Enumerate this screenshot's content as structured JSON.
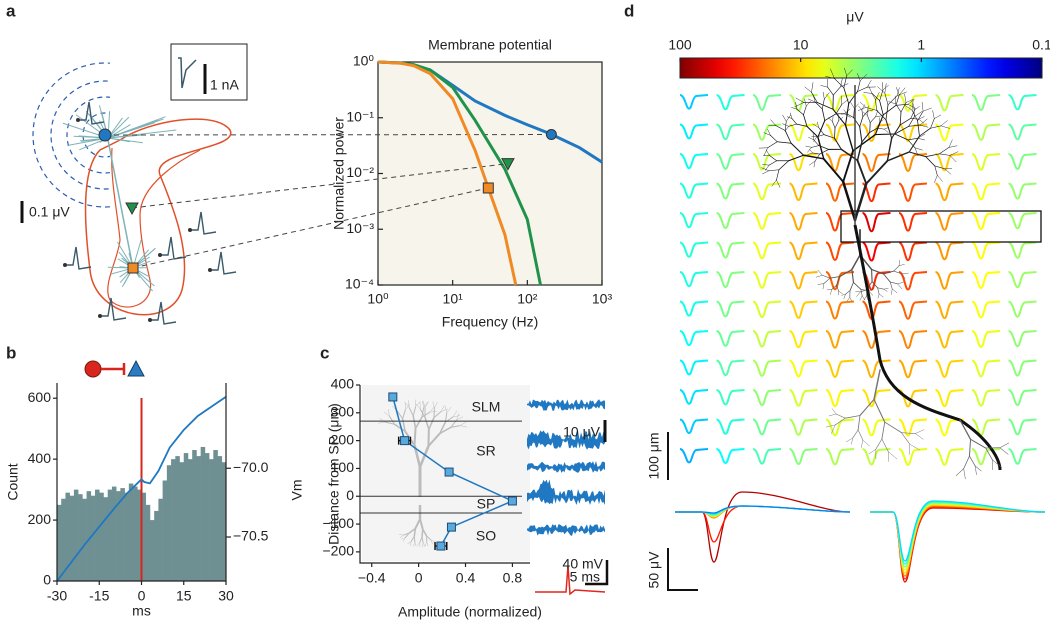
{
  "panel_labels": [
    "a",
    "b",
    "c",
    "d"
  ],
  "chart_data": [
    {
      "type": "line",
      "title": "Membrane potential",
      "x_label": "Frequency (Hz)",
      "y_label": "Normalized power",
      "log_x": true,
      "log_y": true,
      "xlim": [
        1,
        1000
      ],
      "ylim": [
        0.0001,
        1
      ],
      "xticks": [
        {
          "value": 1,
          "label": "10⁰"
        },
        {
          "value": 10,
          "label": "10¹"
        },
        {
          "value": 100,
          "label": "10²"
        },
        {
          "value": 1000,
          "label": "10³"
        }
      ],
      "yticks": [
        {
          "value": 0.0001,
          "label": "10⁻⁴"
        },
        {
          "value": 0.001,
          "label": "10⁻³"
        },
        {
          "value": 0.01,
          "label": "10⁻²"
        },
        {
          "value": 0.1,
          "label": "10⁻¹"
        },
        {
          "value": 1,
          "label": "10⁰"
        }
      ],
      "series": [
        {
          "color": "#1f78c1",
          "x": [
            1,
            2,
            3,
            5,
            10,
            20,
            50,
            100,
            200,
            500,
            1000
          ],
          "values": [
            1,
            0.96,
            0.88,
            0.72,
            0.38,
            0.2,
            0.11,
            0.075,
            0.052,
            0.029,
            0.016
          ],
          "marker": {
            "shape": "circle",
            "x": 210,
            "y": 0.05
          }
        },
        {
          "color": "#21924a",
          "x": [
            1,
            2,
            3,
            5,
            10,
            20,
            50,
            100,
            150
          ],
          "values": [
            1,
            0.96,
            0.9,
            0.72,
            0.35,
            0.09,
            0.012,
            0.0015,
            0.0001
          ],
          "marker": {
            "shape": "triangle",
            "x": 55,
            "y": 0.015
          }
        },
        {
          "color": "#f08a24",
          "x": [
            1,
            2,
            3,
            5,
            10,
            20,
            30,
            50,
            70
          ],
          "values": [
            1,
            0.95,
            0.86,
            0.62,
            0.22,
            0.026,
            0.0055,
            0.0008,
            0.0001
          ],
          "marker": {
            "shape": "square",
            "x": 30,
            "y": 0.0055
          }
        }
      ],
      "annotations": [
        "1 nA",
        "0.1 μV"
      ]
    },
    {
      "type": "histogram",
      "x_label": "ms",
      "y_label": "Count",
      "y2_label": "Vm",
      "color": "#6e9093",
      "xlim": [
        -30,
        30
      ],
      "xticks": [
        -30,
        -15,
        0,
        15,
        30
      ],
      "ylim": [
        0,
        650
      ],
      "yticks": [
        0,
        200,
        400,
        600
      ],
      "y2lim": [
        -70.82,
        -69.38
      ],
      "y2ticks": [
        {
          "value": -70,
          "label": "−70.0"
        },
        {
          "value": -70.5,
          "label": "−70.5"
        }
      ],
      "bins": [
        -30,
        -28.5,
        -27,
        -25.5,
        -24,
        -22.5,
        -21,
        -19.5,
        -18,
        -16.5,
        -15,
        -13.5,
        -12,
        -10.5,
        -9,
        -7.5,
        -6,
        -4.5,
        -3,
        -1.5,
        0,
        1.5,
        3,
        4.5,
        6,
        7.5,
        9,
        10.5,
        12,
        13.5,
        15,
        16.5,
        18,
        19.5,
        21,
        22.5,
        24,
        25.5,
        27,
        28.5,
        30
      ],
      "values": [
        250,
        270,
        290,
        280,
        300,
        285,
        270,
        295,
        280,
        300,
        290,
        275,
        300,
        310,
        295,
        305,
        290,
        320,
        310,
        300,
        290,
        250,
        200,
        230,
        270,
        330,
        380,
        400,
        410,
        390,
        420,
        400,
        430,
        410,
        440,
        420,
        400,
        430,
        410,
        390
      ],
      "vline": 0,
      "vline_color": "#d8261e",
      "series": [
        {
          "axis": "y2",
          "color": "#1f78c1",
          "x": [
            -30,
            -20,
            -10,
            -5,
            0,
            1,
            3,
            6,
            10,
            15,
            20,
            25,
            30
          ],
          "values": [
            -70.82,
            -70.55,
            -70.3,
            -70.18,
            -70.08,
            -70.1,
            -70.11,
            -70.02,
            -69.85,
            -69.72,
            -69.62,
            -69.55,
            -69.48
          ]
        }
      ]
    },
    {
      "type": "scatter",
      "x_label": "Amplitude (normalized)",
      "y_label": "Distance from SP (μm)",
      "color": "#1f78c1",
      "xlim": [
        -0.5,
        0.95
      ],
      "xticks": [
        {
          "value": -0.4,
          "label": "−0.4"
        },
        0,
        0.4,
        0.8
      ],
      "ylim": [
        -240,
        400
      ],
      "yticks": [
        {
          "value": -200,
          "label": "−200"
        },
        {
          "value": -100,
          "label": "−100"
        },
        0,
        100,
        200,
        300,
        400
      ],
      "x": [
        -0.22,
        -0.12,
        0.26,
        0.8,
        0.28,
        0.19
      ],
      "values": [
        357,
        200,
        87,
        -17,
        -111,
        -179
      ],
      "x_errors": [
        null,
        0.05,
        null,
        null,
        null,
        0.05
      ],
      "layers": [
        "SLM",
        "SR",
        "SP",
        "SO"
      ],
      "layer_boundaries": [
        270,
        0,
        -60
      ],
      "annotations": [
        "10 μV",
        "40 mV",
        "5 ms"
      ]
    },
    {
      "type": "trace-grid",
      "colorbar": {
        "label": "μV",
        "log": true,
        "lim": [
          100,
          0.1
        ],
        "ticks": [
          100,
          10,
          1,
          0.1
        ]
      },
      "annotations": [
        "100 μm",
        "50 μV"
      ]
    }
  ]
}
